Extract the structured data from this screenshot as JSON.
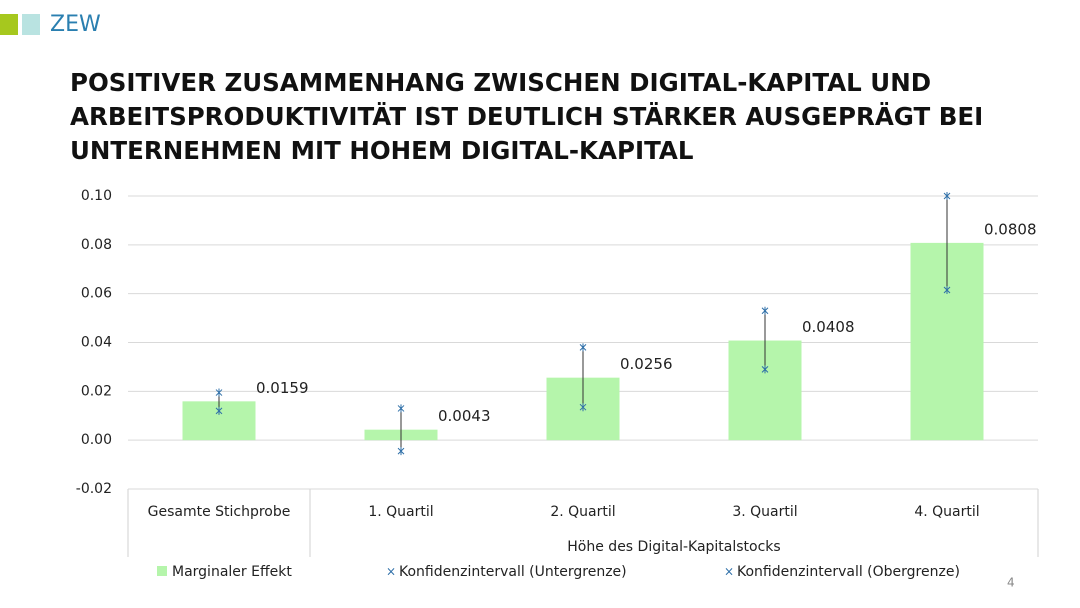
{
  "logo": "ZEW",
  "page_number": "4",
  "chart_data": {
    "type": "bar",
    "title": [
      "POSITIVER ZUSAMMENHANG ZWISCHEN DIGITAL-KAPITAL UND",
      "ARBEITSPRODUKTIVITÄT IST DEUTLICH STÄRKER AUSGEPRÄGT BEI",
      "UNTERNEHMEN MIT HOHEM DIGITAL-KAPITAL"
    ],
    "categories": [
      "Gesamte Stichprobe",
      "1. Quartil",
      "2. Quartil",
      "3. Quartil",
      "4. Quartil"
    ],
    "category_group": "Höhe des Digital-Kapitalstocks",
    "series": [
      {
        "name": "Marginaler Effekt",
        "color": "#b5f5ab",
        "values": [
          0.0159,
          0.0043,
          0.0256,
          0.0408,
          0.0808
        ]
      },
      {
        "name": "Konfidenzintervall (Untergrenze)",
        "color": "#2e6fa8",
        "values": [
          0.012,
          -0.0045,
          0.0135,
          0.029,
          0.0615
        ]
      },
      {
        "name": "Konfidenzintervall (Obergrenze)",
        "color": "#2e6fa8",
        "values": [
          0.0195,
          0.013,
          0.038,
          0.053,
          0.1
        ]
      }
    ],
    "ylim": [
      -0.02,
      0.1
    ],
    "yticks": [
      -0.02,
      {
        "value": 0,
        "label": "0.00"
      },
      0.02,
      0.04,
      0.06,
      0.08,
      {
        "value": 0.1,
        "label": "0.10"
      }
    ],
    "grid": true
  }
}
